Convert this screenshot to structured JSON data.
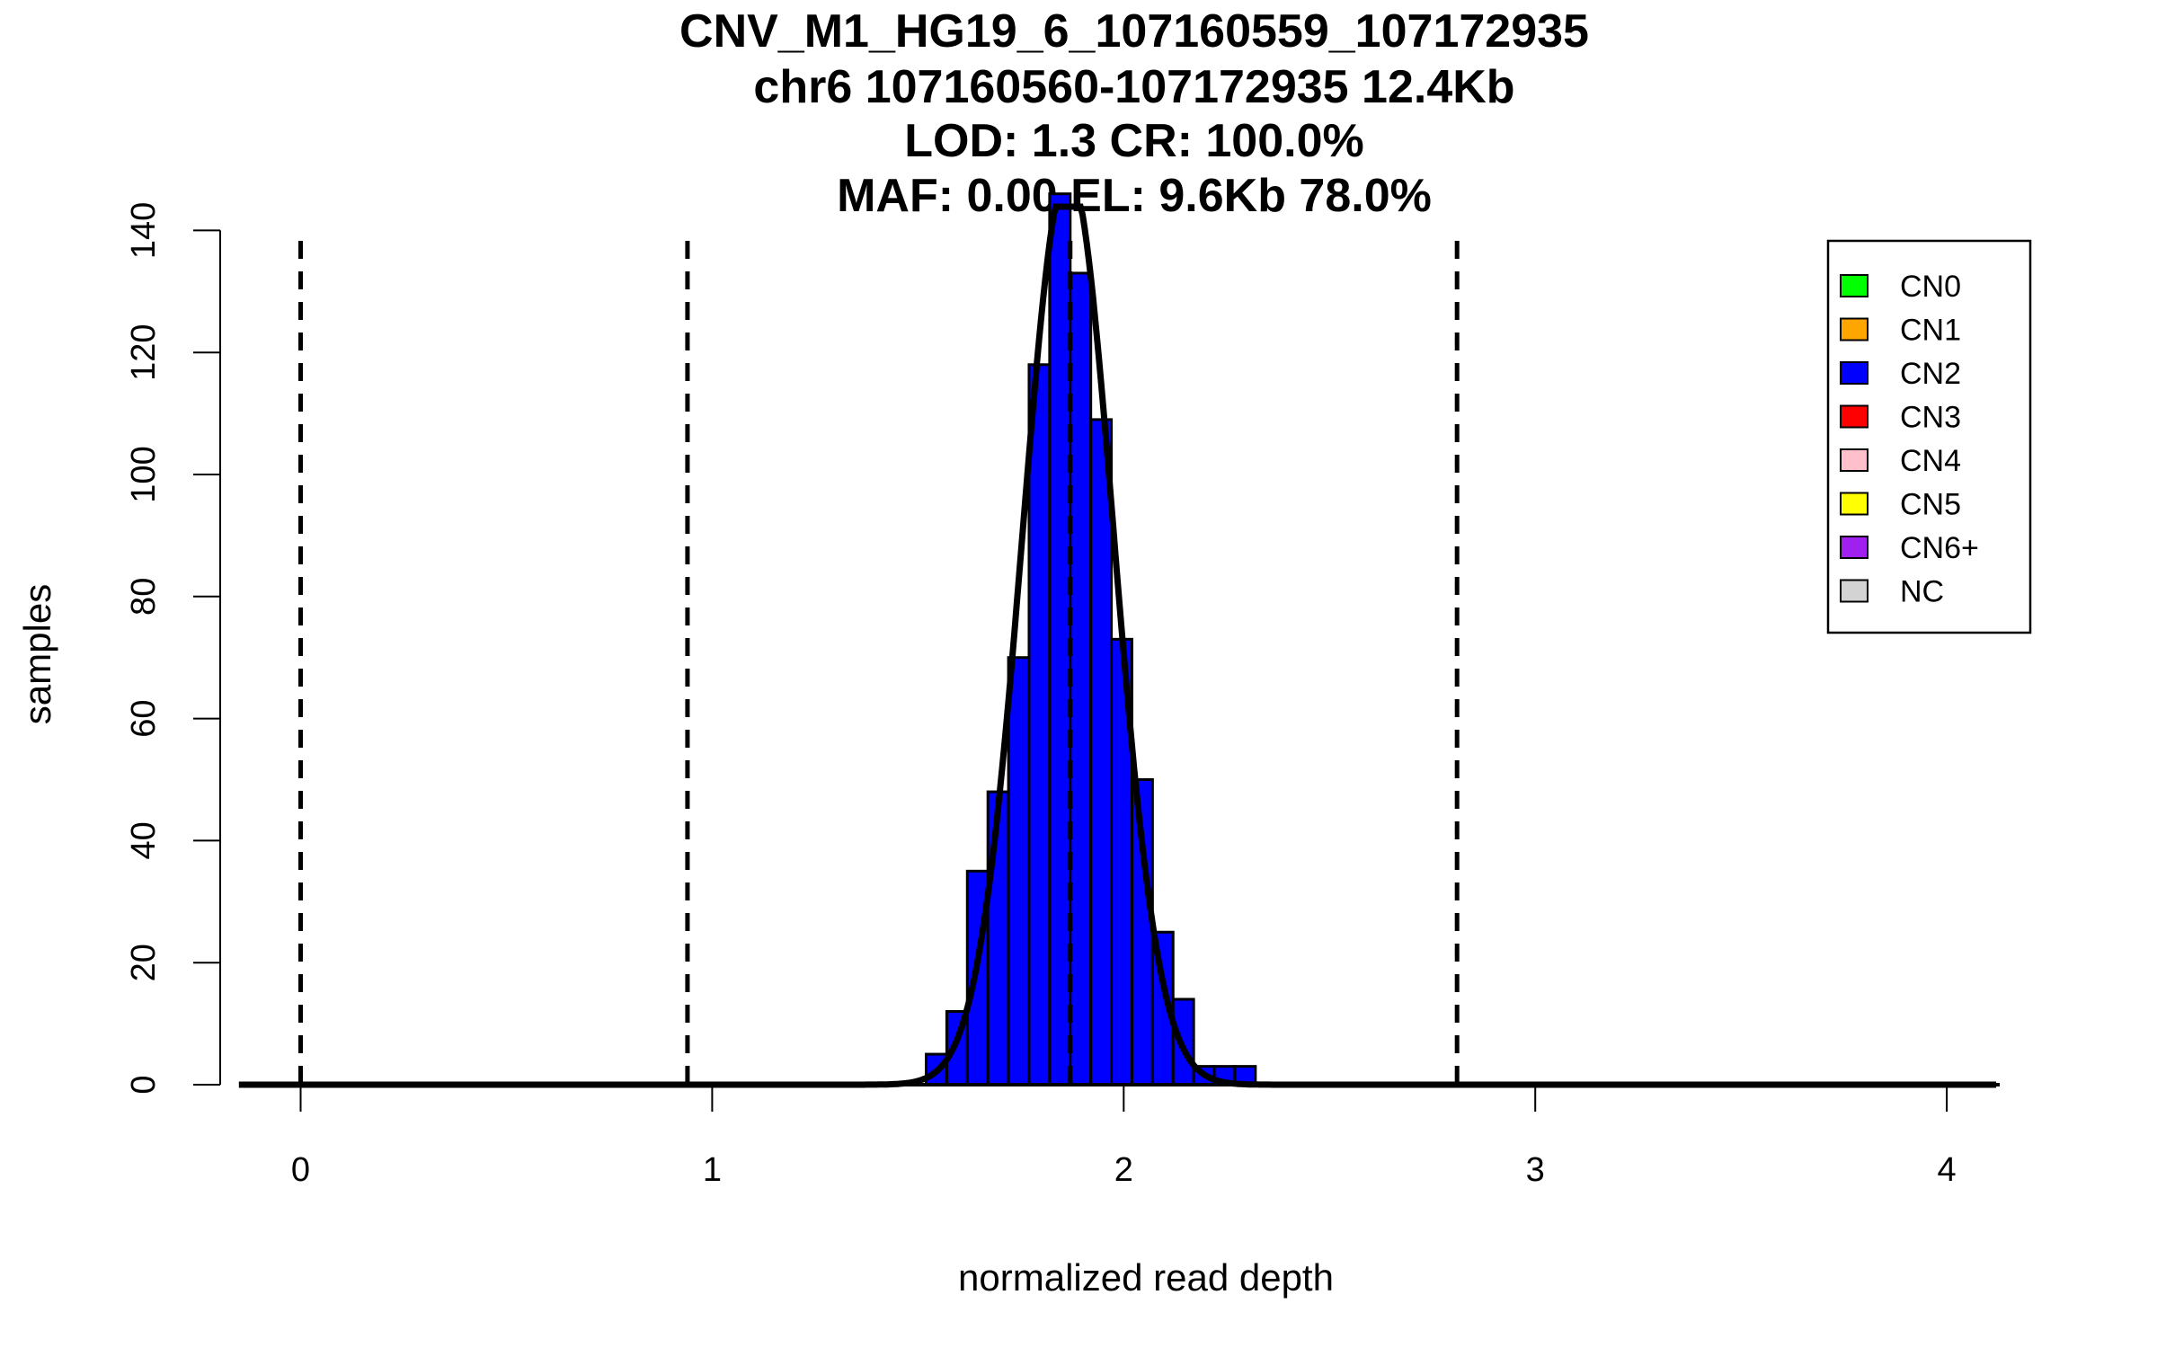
{
  "chart_data": {
    "type": "bar",
    "title_lines": [
      "CNV_M1_HG19_6_107160559_107172935",
      "chr6 107160560-107172935 12.4Kb",
      "LOD: 1.3 CR: 100.0%",
      "MAF: 0.00 EL: 9.6Kb 78.0%"
    ],
    "xlabel": "normalized read depth",
    "ylabel": "samples",
    "xlim": [
      -0.15,
      4.12
    ],
    "ylim": [
      0,
      140
    ],
    "x_ticks": [
      "0",
      "1",
      "2",
      "3",
      "4"
    ],
    "y_ticks": [
      "0",
      "20",
      "40",
      "60",
      "80",
      "100",
      "120",
      "140"
    ],
    "bin_width": 0.05,
    "bins_start": [
      1.52,
      1.57,
      1.62,
      1.67,
      1.72,
      1.77,
      1.82,
      1.87,
      1.92,
      1.97,
      2.02,
      2.07,
      2.12,
      2.17,
      2.22,
      2.27
    ],
    "counts": [
      5,
      12,
      35,
      48,
      70,
      118,
      146,
      133,
      109,
      73,
      50,
      25,
      14,
      3,
      3,
      3
    ],
    "bar_color": "#0000ff",
    "dashed_lines_x": [
      0,
      0.94,
      1.87,
      2.81
    ],
    "fit_curve": {
      "mean": 1.865,
      "sd": 0.11,
      "peak": 150
    },
    "legend": {
      "placement": "top-right",
      "items": [
        {
          "label": "CN0",
          "color": "#00ff00"
        },
        {
          "label": "CN1",
          "color": "#ffa500"
        },
        {
          "label": "CN2",
          "color": "#0000ff"
        },
        {
          "label": "CN3",
          "color": "#ff0000"
        },
        {
          "label": "CN4",
          "color": "#ffc0cb"
        },
        {
          "label": "CN5",
          "color": "#ffff00"
        },
        {
          "label": "CN6+",
          "color": "#a020f0"
        },
        {
          "label": "NC",
          "color": "#d3d3d3"
        }
      ]
    }
  }
}
